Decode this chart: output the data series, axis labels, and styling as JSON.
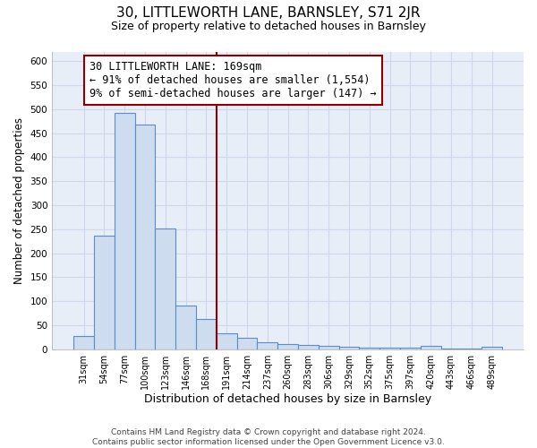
{
  "title": "30, LITTLEWORTH LANE, BARNSLEY, S71 2JR",
  "subtitle": "Size of property relative to detached houses in Barnsley",
  "xlabel": "Distribution of detached houses by size in Barnsley",
  "ylabel": "Number of detached properties",
  "bar_labels": [
    "31sqm",
    "54sqm",
    "77sqm",
    "100sqm",
    "123sqm",
    "146sqm",
    "168sqm",
    "191sqm",
    "214sqm",
    "237sqm",
    "260sqm",
    "283sqm",
    "306sqm",
    "329sqm",
    "352sqm",
    "375sqm",
    "397sqm",
    "420sqm",
    "443sqm",
    "466sqm",
    "489sqm"
  ],
  "bar_values": [
    27,
    237,
    492,
    468,
    252,
    90,
    62,
    33,
    24,
    14,
    11,
    8,
    7,
    5,
    4,
    3,
    3,
    6,
    2,
    2,
    5
  ],
  "bar_color": "#cddcee",
  "bar_edge_color": "#5b8dc8",
  "vline_color": "#8b0000",
  "annotation_text": "30 LITTLEWORTH LANE: 169sqm\n← 91% of detached houses are smaller (1,554)\n9% of semi-detached houses are larger (147) →",
  "annotation_box_color": "#ffffff",
  "annotation_box_edge": "#8b0000",
  "ylim": [
    0,
    620
  ],
  "yticks": [
    0,
    50,
    100,
    150,
    200,
    250,
    300,
    350,
    400,
    450,
    500,
    550,
    600
  ],
  "footnote": "Contains HM Land Registry data © Crown copyright and database right 2024.\nContains public sector information licensed under the Open Government Licence v3.0.",
  "title_fontsize": 11,
  "subtitle_fontsize": 9,
  "xlabel_fontsize": 9,
  "ylabel_fontsize": 8.5,
  "annotation_fontsize": 8.5,
  "footnote_fontsize": 6.5,
  "grid_color": "#ccd8ec",
  "bg_color": "#e8eef8"
}
